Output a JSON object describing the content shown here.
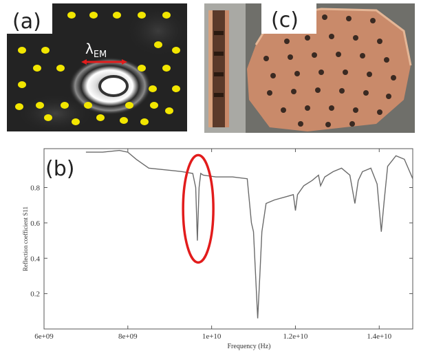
{
  "figure": {
    "panel_a_label": "(a)",
    "panel_b_label": "(b)",
    "panel_c_label": "(c)",
    "lambda_symbol": "λ",
    "lambda_subscript": "EM",
    "highlight_color": "#e21c1c",
    "dot_color": "#f2e600",
    "copper_color": "#c98a6a"
  },
  "chart_data": {
    "type": "line",
    "title": "",
    "xlabel": "Frequency (Hz)",
    "ylabel": "Reflection coefficient S11",
    "xlim": [
      6000000000.0,
      14800000000.0
    ],
    "ylim": [
      0,
      1.02
    ],
    "x_tick_labels": [
      "6e+09",
      "8e+09",
      "1e+10",
      "1.2e+10",
      "1.4e+10"
    ],
    "x_ticks": [
      6000000000.0,
      8000000000.0,
      10000000000.0,
      12000000000.0,
      14000000000.0
    ],
    "y_tick_labels": [
      "0.2",
      "0.4",
      "0.6",
      "0.8"
    ],
    "y_ticks": [
      0.2,
      0.4,
      0.6,
      0.8
    ],
    "series": [
      {
        "x": [
          7000000000.0,
          7400000000.0,
          7800000000.0,
          8000000000.0,
          8200000000.0,
          8500000000.0,
          8900000000.0,
          9300000000.0,
          9550000000.0,
          9620000000.0,
          9660000000.0,
          9700000000.0,
          9740000000.0,
          9800000000.0,
          10100000000.0,
          10500000000.0,
          10850000000.0,
          10950000000.0,
          11000000000.0,
          11050000000.0,
          11100000000.0,
          11150000000.0,
          11200000000.0,
          11300000000.0,
          11500000000.0,
          11800000000.0,
          11950000000.0,
          12000000000.0,
          12050000000.0,
          12200000000.0,
          12400000000.0,
          12550000000.0,
          12600000000.0,
          12700000000.0,
          12900000000.0,
          13100000000.0,
          13300000000.0,
          13420000000.0,
          13500000000.0,
          13600000000.0,
          13800000000.0,
          13950000000.0,
          14050000000.0,
          14120000000.0,
          14200000000.0,
          14400000000.0,
          14600000000.0,
          14800000000.0
        ],
        "y": [
          1.0,
          1.0,
          1.01,
          1.0,
          0.96,
          0.91,
          0.9,
          0.89,
          0.88,
          0.8,
          0.5,
          0.8,
          0.88,
          0.87,
          0.86,
          0.86,
          0.85,
          0.6,
          0.55,
          0.3,
          0.06,
          0.3,
          0.55,
          0.71,
          0.73,
          0.75,
          0.76,
          0.67,
          0.76,
          0.81,
          0.84,
          0.87,
          0.81,
          0.86,
          0.89,
          0.91,
          0.87,
          0.71,
          0.84,
          0.89,
          0.91,
          0.82,
          0.55,
          0.73,
          0.92,
          0.98,
          0.96,
          0.85
        ]
      }
    ],
    "highlight": "ellipse around resonance near 9.7e9 Hz"
  }
}
